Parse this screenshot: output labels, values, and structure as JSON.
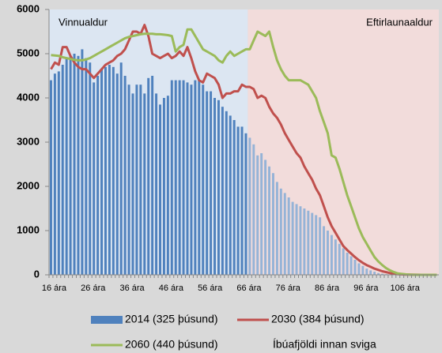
{
  "chart_data": {
    "type": "bar_line",
    "categories": [
      "16 ára",
      null,
      null,
      null,
      null,
      null,
      null,
      null,
      null,
      null,
      "26 ára",
      null,
      null,
      null,
      null,
      null,
      null,
      null,
      null,
      null,
      "36 ára",
      null,
      null,
      null,
      null,
      null,
      null,
      null,
      null,
      null,
      "46 ára",
      null,
      null,
      null,
      null,
      null,
      null,
      null,
      null,
      null,
      "56 ára",
      null,
      null,
      null,
      null,
      null,
      null,
      null,
      null,
      null,
      "66 ára",
      null,
      null,
      null,
      null,
      null,
      null,
      null,
      null,
      null,
      "76 ára",
      null,
      null,
      null,
      null,
      null,
      null,
      null,
      null,
      null,
      "86 ára",
      null,
      null,
      null,
      null,
      null,
      null,
      null,
      null,
      null,
      "96 ára",
      null,
      null,
      null,
      null,
      null,
      null,
      null,
      null,
      null,
      "106 ára",
      null,
      null,
      null,
      null,
      null,
      null,
      null,
      null,
      null
    ],
    "series": [
      {
        "name": "2014 (325 þúsund)",
        "kind": "bar",
        "color": "#4f81bd",
        "values": [
          4400,
          4550,
          4600,
          4750,
          4900,
          4950,
          5000,
          4950,
          5100,
          4900,
          4800,
          4350,
          4500,
          4650,
          4700,
          4750,
          4700,
          4550,
          4800,
          4500,
          4300,
          4100,
          4300,
          4300,
          4100,
          4450,
          4500,
          4100,
          3850,
          4000,
          4050,
          4400,
          4400,
          4400,
          4400,
          4350,
          4300,
          4400,
          4400,
          4300,
          4150,
          4150,
          4000,
          3950,
          3800,
          3700,
          3600,
          3500,
          3350,
          3350,
          3200,
          3100,
          2950,
          2700,
          2750,
          2600,
          2450,
          2300,
          2100,
          1950,
          1850,
          1750,
          1650,
          1600,
          1550,
          1500,
          1450,
          1400,
          1350,
          1300,
          1100,
          1000,
          900,
          800,
          700,
          600,
          500,
          420,
          340,
          260,
          200,
          140,
          100,
          70,
          40,
          25,
          15,
          10,
          5,
          3,
          0,
          0,
          0,
          0,
          0,
          0,
          0,
          0,
          0,
          0
        ]
      },
      {
        "name": "2030 (384 þúsund)",
        "kind": "line",
        "color": "#c0504d",
        "values": [
          4650,
          4800,
          4750,
          5150,
          5150,
          4950,
          4800,
          4700,
          4650,
          4650,
          4550,
          4450,
          4550,
          4650,
          4750,
          4800,
          4850,
          4950,
          5000,
          5100,
          5300,
          5500,
          5500,
          5450,
          5650,
          5400,
          5000,
          4950,
          4900,
          4950,
          5000,
          4900,
          4950,
          5050,
          4950,
          5150,
          4900,
          4600,
          4400,
          4350,
          4550,
          4500,
          4450,
          4300,
          4000,
          4100,
          4100,
          4150,
          4150,
          4300,
          4250,
          4250,
          4200,
          4000,
          4050,
          4000,
          3800,
          3650,
          3550,
          3400,
          3200,
          3050,
          2900,
          2750,
          2650,
          2450,
          2300,
          2150,
          1950,
          1800,
          1550,
          1300,
          1100,
          950,
          800,
          650,
          560,
          480,
          400,
          330,
          270,
          220,
          180,
          140,
          110,
          80,
          60,
          40,
          25,
          15,
          10,
          5,
          3,
          2,
          1,
          0,
          0,
          0,
          0,
          0
        ]
      },
      {
        "name": "2060 (440 þúsund)",
        "kind": "line",
        "color": "#9bbb59",
        "values": [
          4970,
          4960,
          4950,
          4920,
          4900,
          4880,
          4860,
          4850,
          4850,
          4870,
          4900,
          4950,
          5000,
          5050,
          5100,
          5150,
          5200,
          5250,
          5300,
          5350,
          5380,
          5400,
          5420,
          5440,
          5450,
          5450,
          5450,
          5440,
          5440,
          5430,
          5420,
          5400,
          5050,
          5150,
          5200,
          5550,
          5550,
          5400,
          5250,
          5100,
          5050,
          5000,
          4950,
          4850,
          4800,
          4950,
          5050,
          4950,
          5000,
          5050,
          5100,
          5100,
          5300,
          5500,
          5450,
          5400,
          5500,
          5150,
          4850,
          4650,
          4500,
          4400,
          4400,
          4400,
          4400,
          4350,
          4300,
          4150,
          4000,
          3700,
          3450,
          3200,
          2700,
          2650,
          2400,
          2100,
          1800,
          1550,
          1300,
          1050,
          850,
          700,
          550,
          400,
          300,
          220,
          150,
          100,
          60,
          30,
          20,
          10,
          5,
          2,
          0,
          0,
          0,
          0,
          0,
          0
        ]
      }
    ],
    "regions": [
      {
        "label": "Vinnualdur",
        "start": 0,
        "end": 50,
        "color": "#dce6f2",
        "bar_color": "#4f81bd"
      },
      {
        "label": "Eftirlaunaaldur",
        "start": 51,
        "end": 99,
        "color": "#f2dcdb",
        "bar_color": "#95b3d7"
      }
    ],
    "note": "Íbúafjöldi innan sviga",
    "ylim": [
      0,
      6000
    ],
    "yticks": [
      0,
      1000,
      2000,
      3000,
      4000,
      5000,
      6000
    ],
    "grid": false
  }
}
